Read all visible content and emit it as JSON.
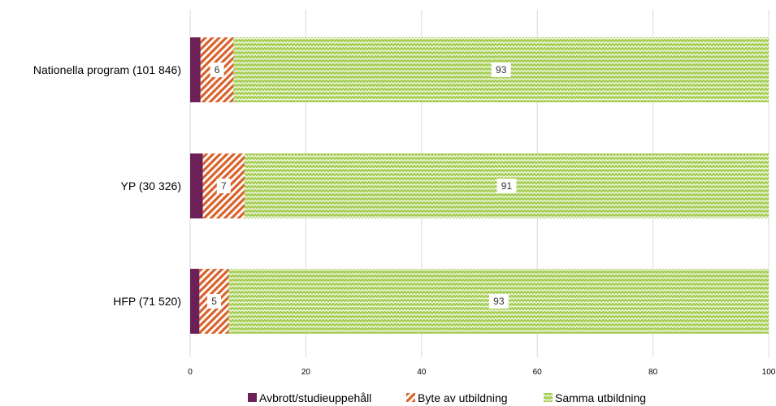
{
  "chart_data": {
    "type": "bar",
    "orientation": "horizontal",
    "stacked": true,
    "categories": [
      "Nationella program (101 846)",
      "YP (30 326)",
      "HFP (71 520)"
    ],
    "series": [
      {
        "name": "Avbrott/studieuppehåll",
        "values": [
          1.8,
          2.2,
          1.6
        ],
        "labels": [
          "",
          "",
          ""
        ],
        "color": "#6b2157",
        "pattern": "solid"
      },
      {
        "name": "Byte av utbildning",
        "values": [
          5.7,
          7.2,
          5.1
        ],
        "labels": [
          "6",
          "7",
          "5"
        ],
        "color": "#d9622b",
        "pattern": "diagonal-stripes"
      },
      {
        "name": "Samma utbildning",
        "values": [
          92.5,
          90.6,
          93.3
        ],
        "labels": [
          "93",
          "91",
          "93"
        ],
        "color": "#8dbb3a",
        "pattern": "zigzag"
      }
    ],
    "x_ticks": [
      0,
      20,
      40,
      60,
      80,
      100
    ],
    "xlim": [
      0,
      100
    ],
    "grid": "vertical",
    "legend_position": "bottom"
  }
}
